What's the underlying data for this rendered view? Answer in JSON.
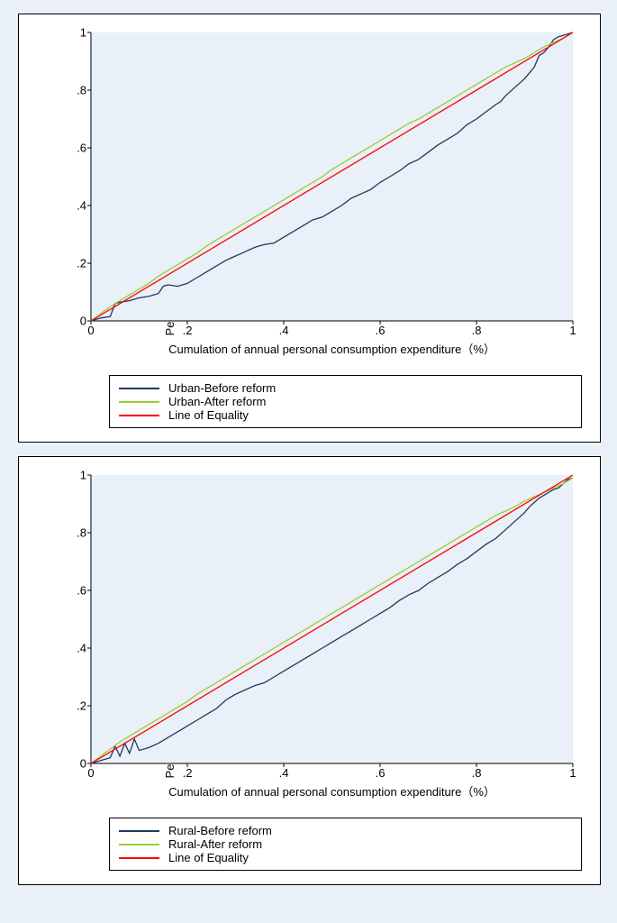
{
  "background_color": "#e9f0f7",
  "panel_bg": "#ffffff",
  "border_color": "#000000",
  "plot_bg": "#e9f0f7",
  "axis_color": "#000000",
  "tick_fontsize": 13,
  "label_fontsize": 13,
  "line_width": 1.3,
  "charts": [
    {
      "y_label": "Percentage of cumulatively continuous indicator（%）",
      "x_label": "Cumulation of annual personal consumption expenditure（%）",
      "xlim": [
        0,
        1
      ],
      "ylim": [
        0,
        1
      ],
      "xticks": [
        0,
        0.2,
        0.4,
        0.6,
        0.8,
        1
      ],
      "yticks": [
        0,
        0.2,
        0.4,
        0.6,
        0.8,
        1
      ],
      "xtick_labels": [
        "0",
        ".2",
        ".4",
        ".6",
        ".8",
        "1"
      ],
      "ytick_labels": [
        "0",
        ".2",
        ".4",
        ".6",
        ".8",
        "1"
      ],
      "series": [
        {
          "name": "Urban-Before reform",
          "color": "#1f3a5f",
          "points": [
            [
              0,
              0
            ],
            [
              0.02,
              0.01
            ],
            [
              0.04,
              0.015
            ],
            [
              0.05,
              0.06
            ],
            [
              0.06,
              0.065
            ],
            [
              0.08,
              0.07
            ],
            [
              0.1,
              0.08
            ],
            [
              0.12,
              0.085
            ],
            [
              0.14,
              0.095
            ],
            [
              0.15,
              0.12
            ],
            [
              0.16,
              0.125
            ],
            [
              0.18,
              0.12
            ],
            [
              0.2,
              0.13
            ],
            [
              0.22,
              0.15
            ],
            [
              0.24,
              0.17
            ],
            [
              0.26,
              0.19
            ],
            [
              0.28,
              0.21
            ],
            [
              0.3,
              0.225
            ],
            [
              0.32,
              0.24
            ],
            [
              0.34,
              0.255
            ],
            [
              0.35,
              0.26
            ],
            [
              0.36,
              0.265
            ],
            [
              0.38,
              0.27
            ],
            [
              0.4,
              0.29
            ],
            [
              0.42,
              0.31
            ],
            [
              0.44,
              0.33
            ],
            [
              0.46,
              0.35
            ],
            [
              0.48,
              0.36
            ],
            [
              0.5,
              0.38
            ],
            [
              0.52,
              0.4
            ],
            [
              0.54,
              0.425
            ],
            [
              0.56,
              0.44
            ],
            [
              0.58,
              0.455
            ],
            [
              0.6,
              0.48
            ],
            [
              0.62,
              0.5
            ],
            [
              0.64,
              0.52
            ],
            [
              0.66,
              0.545
            ],
            [
              0.68,
              0.56
            ],
            [
              0.7,
              0.585
            ],
            [
              0.72,
              0.61
            ],
            [
              0.74,
              0.63
            ],
            [
              0.76,
              0.65
            ],
            [
              0.78,
              0.68
            ],
            [
              0.8,
              0.7
            ],
            [
              0.82,
              0.725
            ],
            [
              0.84,
              0.75
            ],
            [
              0.85,
              0.76
            ],
            [
              0.86,
              0.78
            ],
            [
              0.88,
              0.81
            ],
            [
              0.9,
              0.84
            ],
            [
              0.92,
              0.88
            ],
            [
              0.93,
              0.92
            ],
            [
              0.94,
              0.93
            ],
            [
              0.95,
              0.95
            ],
            [
              0.96,
              0.975
            ],
            [
              0.97,
              0.985
            ],
            [
              0.98,
              0.99
            ],
            [
              0.99,
              0.995
            ],
            [
              1.0,
              1.0
            ]
          ]
        },
        {
          "name": "Urban-After reform",
          "color": "#9acd32",
          "points": [
            [
              0,
              0
            ],
            [
              0.02,
              0.025
            ],
            [
              0.04,
              0.05
            ],
            [
              0.06,
              0.07
            ],
            [
              0.08,
              0.09
            ],
            [
              0.1,
              0.11
            ],
            [
              0.12,
              0.13
            ],
            [
              0.14,
              0.155
            ],
            [
              0.16,
              0.175
            ],
            [
              0.18,
              0.195
            ],
            [
              0.2,
              0.215
            ],
            [
              0.22,
              0.235
            ],
            [
              0.24,
              0.26
            ],
            [
              0.26,
              0.28
            ],
            [
              0.28,
              0.3
            ],
            [
              0.3,
              0.32
            ],
            [
              0.32,
              0.34
            ],
            [
              0.34,
              0.36
            ],
            [
              0.36,
              0.38
            ],
            [
              0.38,
              0.4
            ],
            [
              0.4,
              0.42
            ],
            [
              0.42,
              0.44
            ],
            [
              0.44,
              0.46
            ],
            [
              0.46,
              0.48
            ],
            [
              0.48,
              0.5
            ],
            [
              0.5,
              0.525
            ],
            [
              0.52,
              0.545
            ],
            [
              0.54,
              0.565
            ],
            [
              0.56,
              0.585
            ],
            [
              0.58,
              0.605
            ],
            [
              0.6,
              0.625
            ],
            [
              0.62,
              0.645
            ],
            [
              0.64,
              0.665
            ],
            [
              0.66,
              0.685
            ],
            [
              0.68,
              0.7
            ],
            [
              0.7,
              0.72
            ],
            [
              0.72,
              0.74
            ],
            [
              0.74,
              0.76
            ],
            [
              0.76,
              0.78
            ],
            [
              0.78,
              0.8
            ],
            [
              0.8,
              0.82
            ],
            [
              0.82,
              0.84
            ],
            [
              0.84,
              0.86
            ],
            [
              0.86,
              0.88
            ],
            [
              0.88,
              0.895
            ],
            [
              0.9,
              0.91
            ],
            [
              0.92,
              0.93
            ],
            [
              0.94,
              0.95
            ],
            [
              0.96,
              0.965
            ],
            [
              0.98,
              0.98
            ],
            [
              1.0,
              1.0
            ]
          ]
        },
        {
          "name": "Line of Equality",
          "color": "#ff0000",
          "points": [
            [
              0,
              0
            ],
            [
              1,
              1
            ]
          ]
        }
      ],
      "legend": [
        {
          "label": "Urban-Before reform",
          "color": "#1f3a5f"
        },
        {
          "label": "Urban-After reform",
          "color": "#9acd32"
        },
        {
          "label": "Line of Equality",
          "color": "#ff0000"
        }
      ]
    },
    {
      "y_label": "Percentage of cumulatively continuous indicator（%）",
      "x_label": "Cumulation of annual personal consumption expenditure（%）",
      "xlim": [
        0,
        1
      ],
      "ylim": [
        0,
        1
      ],
      "xticks": [
        0,
        0.2,
        0.4,
        0.6,
        0.8,
        1
      ],
      "yticks": [
        0,
        0.2,
        0.4,
        0.6,
        0.8,
        1
      ],
      "xtick_labels": [
        "0",
        ".2",
        ".4",
        ".6",
        ".8",
        "1"
      ],
      "ytick_labels": [
        "0",
        ".2",
        ".4",
        ".6",
        ".8",
        "1"
      ],
      "series": [
        {
          "name": "Rural-Before reform",
          "color": "#1f3a5f",
          "points": [
            [
              0,
              0
            ],
            [
              0.01,
              0.005
            ],
            [
              0.02,
              0.01
            ],
            [
              0.03,
              0.015
            ],
            [
              0.04,
              0.02
            ],
            [
              0.05,
              0.06
            ],
            [
              0.06,
              0.025
            ],
            [
              0.07,
              0.07
            ],
            [
              0.08,
              0.035
            ],
            [
              0.09,
              0.085
            ],
            [
              0.1,
              0.045
            ],
            [
              0.12,
              0.055
            ],
            [
              0.14,
              0.07
            ],
            [
              0.16,
              0.09
            ],
            [
              0.18,
              0.11
            ],
            [
              0.2,
              0.13
            ],
            [
              0.22,
              0.15
            ],
            [
              0.24,
              0.17
            ],
            [
              0.26,
              0.19
            ],
            [
              0.28,
              0.22
            ],
            [
              0.3,
              0.24
            ],
            [
              0.32,
              0.255
            ],
            [
              0.34,
              0.27
            ],
            [
              0.36,
              0.28
            ],
            [
              0.38,
              0.3
            ],
            [
              0.4,
              0.32
            ],
            [
              0.42,
              0.34
            ],
            [
              0.44,
              0.36
            ],
            [
              0.46,
              0.38
            ],
            [
              0.48,
              0.4
            ],
            [
              0.5,
              0.42
            ],
            [
              0.52,
              0.44
            ],
            [
              0.54,
              0.46
            ],
            [
              0.56,
              0.48
            ],
            [
              0.58,
              0.5
            ],
            [
              0.6,
              0.52
            ],
            [
              0.62,
              0.54
            ],
            [
              0.64,
              0.565
            ],
            [
              0.66,
              0.585
            ],
            [
              0.68,
              0.6
            ],
            [
              0.7,
              0.625
            ],
            [
              0.72,
              0.645
            ],
            [
              0.74,
              0.665
            ],
            [
              0.76,
              0.69
            ],
            [
              0.78,
              0.71
            ],
            [
              0.8,
              0.735
            ],
            [
              0.82,
              0.76
            ],
            [
              0.84,
              0.78
            ],
            [
              0.86,
              0.81
            ],
            [
              0.88,
              0.84
            ],
            [
              0.9,
              0.87
            ],
            [
              0.91,
              0.89
            ],
            [
              0.92,
              0.905
            ],
            [
              0.93,
              0.92
            ],
            [
              0.94,
              0.93
            ],
            [
              0.95,
              0.94
            ],
            [
              0.96,
              0.95
            ],
            [
              0.97,
              0.955
            ],
            [
              0.98,
              0.97
            ],
            [
              0.99,
              0.985
            ],
            [
              1.0,
              0.99
            ]
          ]
        },
        {
          "name": "Rural-After reform",
          "color": "#9acd32",
          "points": [
            [
              0,
              0
            ],
            [
              0.02,
              0.025
            ],
            [
              0.04,
              0.05
            ],
            [
              0.06,
              0.075
            ],
            [
              0.08,
              0.095
            ],
            [
              0.1,
              0.115
            ],
            [
              0.12,
              0.135
            ],
            [
              0.14,
              0.155
            ],
            [
              0.16,
              0.175
            ],
            [
              0.18,
              0.195
            ],
            [
              0.2,
              0.215
            ],
            [
              0.22,
              0.24
            ],
            [
              0.24,
              0.26
            ],
            [
              0.26,
              0.28
            ],
            [
              0.28,
              0.3
            ],
            [
              0.3,
              0.32
            ],
            [
              0.32,
              0.34
            ],
            [
              0.34,
              0.36
            ],
            [
              0.36,
              0.38
            ],
            [
              0.38,
              0.4
            ],
            [
              0.4,
              0.42
            ],
            [
              0.42,
              0.44
            ],
            [
              0.44,
              0.46
            ],
            [
              0.46,
              0.48
            ],
            [
              0.48,
              0.5
            ],
            [
              0.5,
              0.52
            ],
            [
              0.52,
              0.54
            ],
            [
              0.54,
              0.56
            ],
            [
              0.56,
              0.58
            ],
            [
              0.58,
              0.6
            ],
            [
              0.6,
              0.62
            ],
            [
              0.62,
              0.64
            ],
            [
              0.64,
              0.66
            ],
            [
              0.66,
              0.68
            ],
            [
              0.68,
              0.7
            ],
            [
              0.7,
              0.72
            ],
            [
              0.72,
              0.74
            ],
            [
              0.74,
              0.76
            ],
            [
              0.76,
              0.78
            ],
            [
              0.78,
              0.8
            ],
            [
              0.8,
              0.82
            ],
            [
              0.82,
              0.84
            ],
            [
              0.84,
              0.86
            ],
            [
              0.86,
              0.875
            ],
            [
              0.88,
              0.89
            ],
            [
              0.9,
              0.91
            ],
            [
              0.92,
              0.925
            ],
            [
              0.94,
              0.94
            ],
            [
              0.96,
              0.955
            ],
            [
              0.98,
              0.97
            ],
            [
              1.0,
              0.99
            ]
          ]
        },
        {
          "name": "Line of Equality",
          "color": "#ff0000",
          "points": [
            [
              0,
              0
            ],
            [
              1,
              1
            ]
          ]
        }
      ],
      "legend": [
        {
          "label": "Rural-Before reform",
          "color": "#1f3a5f"
        },
        {
          "label": "Rural-After reform",
          "color": "#9acd32"
        },
        {
          "label": "Line of Equality",
          "color": "#ff0000"
        }
      ]
    }
  ]
}
